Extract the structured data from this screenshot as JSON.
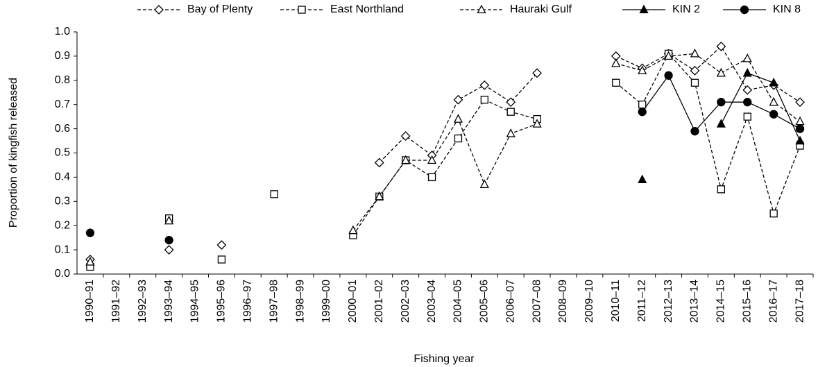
{
  "chart_data": {
    "type": "line",
    "x_label": "Fishing year",
    "y_label": "Proportion of kingfish released",
    "categories": [
      "1990–91",
      "1991–92",
      "1992–93",
      "1993–94",
      "1994–95",
      "1995–96",
      "1996–97",
      "1997–98",
      "1998–99",
      "1999–00",
      "2000–01",
      "2001–02",
      "2002–03",
      "2003–04",
      "2004–05",
      "2005–06",
      "2006–07",
      "2007–08",
      "2008–09",
      "2009–10",
      "2010–11",
      "2011–12",
      "2012–13",
      "2013–14",
      "2014–15",
      "2015–16",
      "2016–17",
      "2017–18"
    ],
    "ylim": [
      0,
      1
    ],
    "yticks": [
      {
        "value": 0,
        "label": "0.0"
      },
      0.1,
      0.2,
      0.3,
      0.4,
      0.5,
      0.6,
      0.7,
      0.8,
      0.9,
      {
        "value": 1,
        "label": "1.0"
      }
    ],
    "legend": "top",
    "series": [
      {
        "name": "Bay of Plenty",
        "color": "#000000",
        "marker": "diamond",
        "marker_fill": "#ffffff",
        "dashed": true,
        "values": [
          0.06,
          null,
          null,
          0.1,
          null,
          0.12,
          null,
          null,
          null,
          null,
          null,
          0.46,
          0.57,
          0.49,
          0.72,
          0.78,
          0.71,
          0.83,
          null,
          null,
          0.9,
          0.85,
          0.91,
          0.84,
          0.94,
          0.76,
          0.78,
          0.71
        ]
      },
      {
        "name": "East Northland",
        "color": "#000000",
        "marker": "square",
        "marker_fill": "#ffffff",
        "dashed": true,
        "values": [
          0.03,
          null,
          null,
          0.23,
          null,
          0.06,
          null,
          0.33,
          null,
          null,
          0.16,
          0.32,
          0.47,
          0.4,
          0.56,
          0.72,
          0.67,
          0.64,
          null,
          null,
          0.79,
          0.7,
          0.91,
          0.79,
          0.35,
          0.65,
          0.25,
          0.53
        ]
      },
      {
        "name": "Hauraki Gulf",
        "color": "#000000",
        "marker": "triangle",
        "marker_fill": "#ffffff",
        "dashed": true,
        "values": [
          0.05,
          null,
          null,
          0.22,
          null,
          null,
          null,
          null,
          null,
          null,
          0.18,
          0.32,
          0.47,
          0.47,
          0.64,
          0.37,
          0.58,
          0.62,
          null,
          null,
          0.87,
          0.84,
          0.9,
          0.91,
          0.83,
          0.89,
          0.71,
          0.63
        ]
      },
      {
        "name": "KIN 2",
        "color": "#000000",
        "marker": "triangle",
        "marker_fill": "#000000",
        "dashed": false,
        "values": [
          null,
          null,
          null,
          null,
          null,
          null,
          null,
          null,
          null,
          null,
          null,
          null,
          null,
          null,
          null,
          null,
          null,
          null,
          null,
          null,
          null,
          0.39,
          null,
          null,
          0.62,
          0.83,
          0.79,
          0.55
        ]
      },
      {
        "name": "KIN 8",
        "color": "#000000",
        "marker": "circle",
        "marker_fill": "#000000",
        "dashed": false,
        "values": [
          0.17,
          null,
          null,
          0.14,
          null,
          null,
          null,
          null,
          null,
          null,
          null,
          null,
          null,
          null,
          null,
          null,
          null,
          null,
          null,
          null,
          null,
          0.67,
          0.82,
          0.59,
          0.71,
          0.71,
          0.66,
          0.6
        ]
      }
    ]
  }
}
